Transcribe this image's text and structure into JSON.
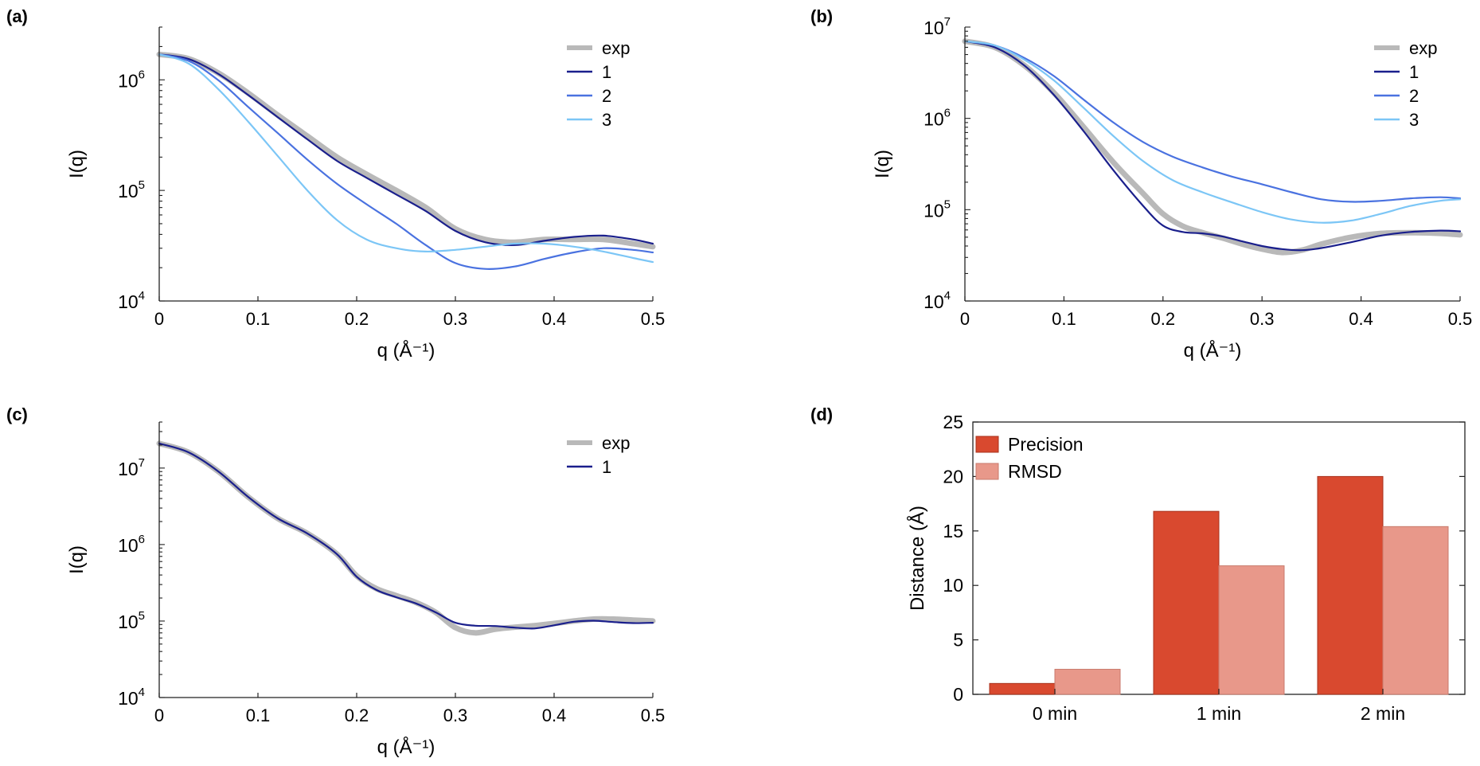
{
  "figure": {
    "panel_labels": [
      "(a)",
      "(b)",
      "(c)",
      "(d)"
    ]
  },
  "colors": {
    "exp": "#b9b9b9",
    "fit1": "#1a1f8c",
    "fit2": "#4a72e0",
    "fit3": "#7cc6f6",
    "precision": "#d9492f",
    "rmsd": "#e8988a",
    "axis": "#222222"
  },
  "chart_data": [
    {
      "panel": "(a)",
      "type": "line",
      "xlabel": "q (Å⁻¹)",
      "ylabel": "I(q)",
      "xlim": [
        0,
        0.5
      ],
      "ylim": [
        10000,
        3000000
      ],
      "yscale": "log",
      "xticks": [
        "0",
        "0.1",
        "0.2",
        "0.3",
        "0.4",
        "0.5"
      ],
      "yticks": [
        {
          "base": "10",
          "exp": "4"
        },
        {
          "base": "10",
          "exp": "5"
        },
        {
          "base": "10",
          "exp": "6"
        }
      ],
      "legend": "top-right",
      "series": [
        {
          "name": "exp",
          "x": [
            0,
            0.03,
            0.06,
            0.09,
            0.12,
            0.15,
            0.18,
            0.21,
            0.24,
            0.27,
            0.3,
            0.33,
            0.36,
            0.39,
            0.42,
            0.45,
            0.48,
            0.5
          ],
          "y": [
            1700000,
            1550000,
            1150000,
            760000,
            480000,
            310000,
            200000,
            140000,
            100000,
            70000,
            45000,
            36000,
            34000,
            36000,
            36000,
            36000,
            33000,
            31000
          ]
        },
        {
          "name": "1",
          "x": [
            0,
            0.03,
            0.06,
            0.09,
            0.12,
            0.15,
            0.18,
            0.21,
            0.24,
            0.27,
            0.3,
            0.33,
            0.36,
            0.39,
            0.42,
            0.45,
            0.48,
            0.5
          ],
          "y": [
            1700000,
            1540000,
            1130000,
            730000,
            460000,
            290000,
            185000,
            130000,
            92000,
            65000,
            43000,
            34000,
            32000,
            35000,
            38000,
            39000,
            36000,
            33000
          ]
        },
        {
          "name": "2",
          "x": [
            0,
            0.03,
            0.06,
            0.09,
            0.12,
            0.15,
            0.18,
            0.21,
            0.24,
            0.27,
            0.3,
            0.33,
            0.36,
            0.39,
            0.42,
            0.45,
            0.48,
            0.5
          ],
          "y": [
            1700000,
            1480000,
            990000,
            570000,
            330000,
            190000,
            115000,
            75000,
            50000,
            32000,
            22000,
            19500,
            20500,
            24000,
            27500,
            30000,
            29000,
            27500
          ]
        },
        {
          "name": "3",
          "x": [
            0,
            0.03,
            0.06,
            0.09,
            0.12,
            0.15,
            0.18,
            0.21,
            0.24,
            0.27,
            0.3,
            0.33,
            0.36,
            0.39,
            0.42,
            0.45,
            0.48,
            0.5
          ],
          "y": [
            1700000,
            1400000,
            820000,
            420000,
            205000,
            100000,
            54000,
            36000,
            30000,
            28000,
            29000,
            31000,
            33000,
            33000,
            31000,
            28000,
            24500,
            22500
          ]
        }
      ]
    },
    {
      "panel": "(b)",
      "type": "line",
      "xlabel": "q (Å⁻¹)",
      "ylabel": "I(q)",
      "xlim": [
        0,
        0.5
      ],
      "ylim": [
        10000,
        10000000
      ],
      "yscale": "log",
      "xticks": [
        "0",
        "0.1",
        "0.2",
        "0.3",
        "0.4",
        "0.5"
      ],
      "yticks": [
        {
          "base": "10",
          "exp": "4"
        },
        {
          "base": "10",
          "exp": "5"
        },
        {
          "base": "10",
          "exp": "6"
        },
        {
          "base": "10",
          "exp": "7"
        }
      ],
      "legend": "top-right",
      "series": [
        {
          "name": "exp",
          "x": [
            0,
            0.03,
            0.06,
            0.09,
            0.12,
            0.15,
            0.18,
            0.2,
            0.22,
            0.24,
            0.26,
            0.28,
            0.3,
            0.32,
            0.34,
            0.36,
            0.39,
            0.42,
            0.45,
            0.48,
            0.5
          ],
          "y": [
            7000000,
            6000000,
            3800000,
            1900000,
            800000,
            330000,
            150000,
            90000,
            66000,
            56000,
            49000,
            42000,
            37000,
            34000,
            36000,
            42000,
            50000,
            55000,
            56000,
            55000,
            53000
          ]
        },
        {
          "name": "1",
          "x": [
            0,
            0.03,
            0.06,
            0.09,
            0.12,
            0.15,
            0.18,
            0.2,
            0.22,
            0.24,
            0.26,
            0.28,
            0.3,
            0.32,
            0.34,
            0.36,
            0.39,
            0.42,
            0.45,
            0.48,
            0.5
          ],
          "y": [
            7000000,
            6000000,
            3800000,
            1800000,
            720000,
            270000,
            110000,
            67000,
            57000,
            55000,
            51000,
            45000,
            40000,
            37000,
            36000,
            38000,
            44000,
            52000,
            57000,
            59000,
            58000
          ]
        },
        {
          "name": "2",
          "x": [
            0,
            0.03,
            0.06,
            0.09,
            0.12,
            0.15,
            0.18,
            0.21,
            0.24,
            0.27,
            0.3,
            0.33,
            0.36,
            0.39,
            0.42,
            0.45,
            0.48,
            0.5
          ],
          "y": [
            7000000,
            6300000,
            4600000,
            2900000,
            1600000,
            900000,
            550000,
            380000,
            290000,
            230000,
            190000,
            155000,
            130000,
            122000,
            125000,
            133000,
            137000,
            133000
          ]
        },
        {
          "name": "3",
          "x": [
            0,
            0.03,
            0.06,
            0.09,
            0.12,
            0.15,
            0.18,
            0.21,
            0.24,
            0.27,
            0.3,
            0.33,
            0.36,
            0.39,
            0.42,
            0.45,
            0.48,
            0.5
          ],
          "y": [
            7000000,
            6300000,
            4400000,
            2600000,
            1300000,
            640000,
            340000,
            210000,
            155000,
            120000,
            94000,
            78000,
            72000,
            76000,
            90000,
            110000,
            125000,
            130000
          ]
        }
      ]
    },
    {
      "panel": "(c)",
      "type": "line",
      "xlabel": "q (Å⁻¹)",
      "ylabel": "I(q)",
      "xlim": [
        0,
        0.5
      ],
      "ylim": [
        10000,
        40000000
      ],
      "yscale": "log",
      "xticks": [
        "0",
        "0.1",
        "0.2",
        "0.3",
        "0.4",
        "0.5"
      ],
      "yticks": [
        {
          "base": "10",
          "exp": "4"
        },
        {
          "base": "10",
          "exp": "5"
        },
        {
          "base": "10",
          "exp": "6"
        },
        {
          "base": "10",
          "exp": "7"
        }
      ],
      "legend": "top-right",
      "series": [
        {
          "name": "exp",
          "x": [
            0,
            0.03,
            0.06,
            0.09,
            0.12,
            0.15,
            0.18,
            0.2,
            0.22,
            0.24,
            0.26,
            0.28,
            0.3,
            0.32,
            0.34,
            0.36,
            0.38,
            0.4,
            0.42,
            0.44,
            0.46,
            0.48,
            0.5
          ],
          "y": [
            21000000,
            16000000,
            9000000,
            4200000,
            2200000,
            1400000,
            750000,
            390000,
            265000,
            215000,
            175000,
            130000,
            82000,
            70000,
            78000,
            83000,
            87000,
            93000,
            100000,
            106000,
            106000,
            103000,
            100000
          ]
        },
        {
          "name": "1",
          "x": [
            0,
            0.03,
            0.06,
            0.09,
            0.12,
            0.15,
            0.18,
            0.2,
            0.22,
            0.24,
            0.26,
            0.28,
            0.3,
            0.32,
            0.34,
            0.36,
            0.38,
            0.4,
            0.42,
            0.44,
            0.46,
            0.48,
            0.5
          ],
          "y": [
            21000000,
            16000000,
            9000000,
            4200000,
            2200000,
            1400000,
            750000,
            380000,
            255000,
            205000,
            170000,
            130000,
            95000,
            87000,
            86000,
            82000,
            80000,
            88000,
            98000,
            101000,
            97000,
            94000,
            95000
          ]
        }
      ]
    },
    {
      "panel": "(d)",
      "type": "bar",
      "ylabel": "Distance (Å)",
      "ylim": [
        0,
        25
      ],
      "yticks": [
        "0",
        "5",
        "10",
        "15",
        "20",
        "25"
      ],
      "categories": [
        "0 min",
        "1 min",
        "2 min"
      ],
      "legend": "top-left",
      "series": [
        {
          "name": "Precision",
          "values": [
            1.0,
            16.8,
            20.0
          ]
        },
        {
          "name": "RMSD",
          "values": [
            2.3,
            11.8,
            15.4
          ]
        }
      ]
    }
  ]
}
